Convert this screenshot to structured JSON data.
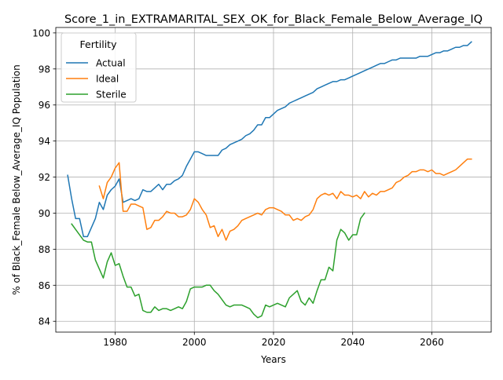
{
  "chart_data": {
    "type": "line",
    "title": "Score_1_in_EXTRAMARITAL_SEX_OK_for_Black_Female_Below_Average_IQ",
    "xlabel": "Years",
    "ylabel": "% of Black_Female Below_Average_IQ Population",
    "xlim": [
      1965,
      2075
    ],
    "ylim": [
      83.4,
      100.3
    ],
    "xticks": [
      1980,
      2000,
      2020,
      2040,
      2060
    ],
    "yticks": [
      84,
      86,
      88,
      90,
      92,
      94,
      96,
      98,
      100
    ],
    "grid": true,
    "legend": {
      "title": "Fertility",
      "placement": "upper-left"
    },
    "series": [
      {
        "name": "Actual",
        "color": "#1f77b4",
        "x": [
          1968,
          1969,
          1970,
          1971,
          1972,
          1973,
          1974,
          1975,
          1976,
          1977,
          1978,
          1979,
          1980,
          1981,
          1982,
          1983,
          1984,
          1985,
          1986,
          1987,
          1988,
          1989,
          1990,
          1991,
          1992,
          1993,
          1994,
          1995,
          1996,
          1997,
          1998,
          1999,
          2000,
          2001,
          2002,
          2003,
          2004,
          2005,
          2006,
          2007,
          2008,
          2009,
          2010,
          2011,
          2012,
          2013,
          2014,
          2015,
          2016,
          2017,
          2018,
          2019,
          2020,
          2021,
          2022,
          2023,
          2024,
          2025,
          2026,
          2027,
          2028,
          2029,
          2030,
          2031,
          2032,
          2033,
          2034,
          2035,
          2036,
          2037,
          2038,
          2039,
          2040,
          2041,
          2042,
          2043,
          2044,
          2045,
          2046,
          2047,
          2048,
          2049,
          2050,
          2051,
          2052,
          2053,
          2054,
          2055,
          2056,
          2057,
          2058,
          2059,
          2060,
          2061,
          2062,
          2063,
          2064,
          2065,
          2066,
          2067,
          2068,
          2069,
          2070
        ],
        "y": [
          92.1,
          90.8,
          89.7,
          89.7,
          88.7,
          88.7,
          89.2,
          89.7,
          90.6,
          90.2,
          91.0,
          91.3,
          91.5,
          91.9,
          90.6,
          90.7,
          90.8,
          90.7,
          90.8,
          91.3,
          91.2,
          91.2,
          91.4,
          91.6,
          91.3,
          91.6,
          91.6,
          91.8,
          91.9,
          92.1,
          92.6,
          93.0,
          93.4,
          93.4,
          93.3,
          93.2,
          93.2,
          93.2,
          93.2,
          93.5,
          93.6,
          93.8,
          93.9,
          94.0,
          94.1,
          94.3,
          94.4,
          94.6,
          94.9,
          94.9,
          95.3,
          95.3,
          95.5,
          95.7,
          95.8,
          95.9,
          96.1,
          96.2,
          96.3,
          96.4,
          96.5,
          96.6,
          96.7,
          96.9,
          97.0,
          97.1,
          97.2,
          97.3,
          97.3,
          97.4,
          97.4,
          97.5,
          97.6,
          97.7,
          97.8,
          97.9,
          98.0,
          98.1,
          98.2,
          98.3,
          98.3,
          98.4,
          98.5,
          98.5,
          98.6,
          98.6,
          98.6,
          98.6,
          98.6,
          98.7,
          98.7,
          98.7,
          98.8,
          98.9,
          98.9,
          99.0,
          99.0,
          99.1,
          99.2,
          99.2,
          99.3,
          99.3,
          99.5
        ]
      },
      {
        "name": "Ideal",
        "color": "#ff7f0e",
        "x": [
          1976,
          1977,
          1978,
          1979,
          1980,
          1981,
          1982,
          1983,
          1984,
          1985,
          1986,
          1987,
          1988,
          1989,
          1990,
          1991,
          1992,
          1993,
          1994,
          1995,
          1996,
          1997,
          1998,
          1999,
          2000,
          2001,
          2002,
          2003,
          2004,
          2005,
          2006,
          2007,
          2008,
          2009,
          2010,
          2011,
          2012,
          2013,
          2014,
          2015,
          2016,
          2017,
          2018,
          2019,
          2020,
          2021,
          2022,
          2023,
          2024,
          2025,
          2026,
          2027,
          2028,
          2029,
          2030,
          2031,
          2032,
          2033,
          2034,
          2035,
          2036,
          2037,
          2038,
          2039,
          2040,
          2041,
          2042,
          2043,
          2044,
          2045,
          2046,
          2047,
          2048,
          2049,
          2050,
          2051,
          2052,
          2053,
          2054,
          2055,
          2056,
          2057,
          2058,
          2059,
          2060,
          2061,
          2062,
          2063,
          2064,
          2065,
          2066,
          2067,
          2068,
          2069,
          2070
        ],
        "y": [
          91.5,
          90.8,
          91.7,
          92.0,
          92.5,
          92.8,
          90.1,
          90.1,
          90.5,
          90.5,
          90.4,
          90.3,
          89.1,
          89.2,
          89.6,
          89.6,
          89.8,
          90.1,
          90.0,
          90.0,
          89.8,
          89.8,
          89.9,
          90.2,
          90.8,
          90.6,
          90.2,
          89.9,
          89.2,
          89.3,
          88.7,
          89.1,
          88.5,
          89.0,
          89.1,
          89.3,
          89.6,
          89.7,
          89.8,
          89.9,
          90.0,
          89.9,
          90.2,
          90.3,
          90.3,
          90.2,
          90.1,
          89.9,
          89.9,
          89.6,
          89.7,
          89.6,
          89.8,
          89.9,
          90.2,
          90.8,
          91.0,
          91.1,
          91.0,
          91.1,
          90.8,
          91.2,
          91.0,
          91.0,
          90.9,
          91.0,
          90.8,
          91.2,
          90.9,
          91.1,
          91.0,
          91.2,
          91.2,
          91.3,
          91.4,
          91.7,
          91.8,
          92.0,
          92.1,
          92.3,
          92.3,
          92.4,
          92.4,
          92.3,
          92.4,
          92.2,
          92.2,
          92.1,
          92.2,
          92.3,
          92.4,
          92.6,
          92.8,
          93.0,
          93.0
        ]
      },
      {
        "name": "Sterile",
        "color": "#2ca02c",
        "x": [
          1969,
          1970,
          1971,
          1972,
          1973,
          1974,
          1975,
          1976,
          1977,
          1978,
          1979,
          1980,
          1981,
          1982,
          1983,
          1984,
          1985,
          1986,
          1987,
          1988,
          1989,
          1990,
          1991,
          1992,
          1993,
          1994,
          1995,
          1996,
          1997,
          1998,
          1999,
          2000,
          2001,
          2002,
          2003,
          2004,
          2005,
          2006,
          2007,
          2008,
          2009,
          2010,
          2011,
          2012,
          2013,
          2014,
          2015,
          2016,
          2017,
          2018,
          2019,
          2020,
          2021,
          2022,
          2023,
          2024,
          2025,
          2026,
          2027,
          2028,
          2029,
          2030,
          2031,
          2032,
          2033,
          2034,
          2035,
          2036,
          2037,
          2038,
          2039,
          2040,
          2041,
          2042,
          2043
        ],
        "y": [
          89.4,
          89.1,
          88.8,
          88.5,
          88.4,
          88.4,
          87.4,
          86.9,
          86.4,
          87.3,
          87.8,
          87.1,
          87.2,
          86.5,
          85.9,
          85.9,
          85.4,
          85.5,
          84.6,
          84.5,
          84.5,
          84.8,
          84.6,
          84.7,
          84.7,
          84.6,
          84.7,
          84.8,
          84.7,
          85.1,
          85.8,
          85.9,
          85.9,
          85.9,
          86.0,
          86.0,
          85.7,
          85.5,
          85.2,
          84.9,
          84.8,
          84.9,
          84.9,
          84.9,
          84.8,
          84.7,
          84.4,
          84.2,
          84.3,
          84.9,
          84.8,
          84.9,
          85.0,
          84.9,
          84.8,
          85.3,
          85.5,
          85.7,
          85.1,
          84.9,
          85.3,
          85.0,
          85.7,
          86.3,
          86.3,
          87.0,
          86.8,
          88.5,
          89.1,
          88.9,
          88.5,
          88.8,
          88.8,
          89.7,
          90.0
        ]
      }
    ]
  }
}
